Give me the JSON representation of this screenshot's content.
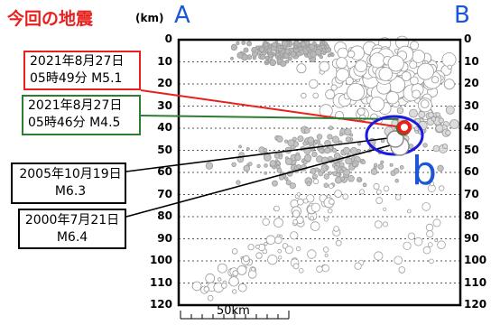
{
  "header": {
    "title": "今回の地震",
    "unit": "(km)"
  },
  "section_labels": {
    "start": "A",
    "end": "B",
    "region": "b"
  },
  "colors": {
    "title": "#e8201e",
    "section_label": "#1a56d6",
    "ellipse": "#1a1ae0",
    "event_latest": "#e8201e",
    "event_recent": "#2e7d32",
    "grid": "#555555"
  },
  "depth_axis": {
    "ticks": [
      "0",
      "10",
      "20",
      "30",
      "40",
      "50",
      "60",
      "70",
      "80",
      "90",
      "100",
      "110",
      "120"
    ],
    "min": 0,
    "max": 120
  },
  "scale_bar": {
    "label": "50km"
  },
  "events": [
    {
      "id": "latest",
      "lines": [
        "2021年8月27日",
        "05時49分 M5.1"
      ],
      "depth_km": 39
    },
    {
      "id": "recent",
      "lines": [
        "2021年8月27日",
        "05時46分 M4.5"
      ],
      "depth_km": 40
    },
    {
      "id": "e2005",
      "lines": [
        "2005年10月19日",
        "M6.3"
      ],
      "depth_km": 47
    },
    {
      "id": "e2000",
      "lines": [
        "2000年7月21日",
        "M6.4"
      ],
      "depth_km": 49
    }
  ]
}
